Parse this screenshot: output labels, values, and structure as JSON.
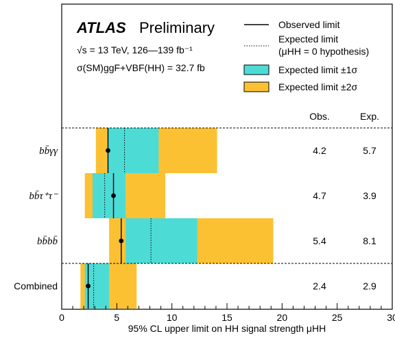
{
  "chart_data": {
    "type": "bar",
    "title": "ATLAS Preliminary",
    "title_parts": {
      "experiment": "ATLAS",
      "status": "Preliminary"
    },
    "info_lines": {
      "energy": "√s = 13 TeV, 126—139 fb⁻¹",
      "xsec": "σ(SM)ggF+VBF(HH) = 32.7 fb"
    },
    "xlabel": "95% CL upper limit on HH signal strength μHH",
    "xlim": [
      0,
      30
    ],
    "xticks": [
      "0",
      "5",
      "10",
      "15",
      "20",
      "25",
      "30"
    ],
    "columns": {
      "obs": "Obs.",
      "exp": "Exp."
    },
    "legend": {
      "observed": "Observed limit",
      "expected_line1": "Expected limit",
      "expected_line2": "(μHH = 0 hypothesis)",
      "band1": "Expected limit ±1σ",
      "band2": "Expected limit ±2σ"
    },
    "colors": {
      "band1": "#4ddbd6",
      "band2": "#fcc132",
      "line": "#000000"
    },
    "categories": [
      {
        "label": "bb̄γγ",
        "obs": 4.2,
        "exp": 5.7,
        "band1": [
          4.2,
          8.8
        ],
        "band2": [
          3.1,
          14.1
        ],
        "obs_label": "4.2",
        "exp_label": "5.7"
      },
      {
        "label": "bb̄τ⁺τ⁻",
        "obs": 4.7,
        "exp": 3.9,
        "band1": [
          2.8,
          5.8
        ],
        "band2": [
          2.1,
          9.4
        ],
        "obs_label": "4.7",
        "exp_label": "3.9"
      },
      {
        "label": "bb̄bb̄",
        "obs": 5.4,
        "exp": 8.1,
        "band1": [
          5.8,
          12.3
        ],
        "band2": [
          4.3,
          19.2
        ],
        "obs_label": "5.4",
        "exp_label": "8.1"
      },
      {
        "label": "Combined",
        "obs": 2.4,
        "exp": 2.9,
        "band1": [
          2.1,
          4.3
        ],
        "band2": [
          1.7,
          6.8
        ],
        "obs_label": "2.4",
        "exp_label": "2.9"
      }
    ]
  }
}
